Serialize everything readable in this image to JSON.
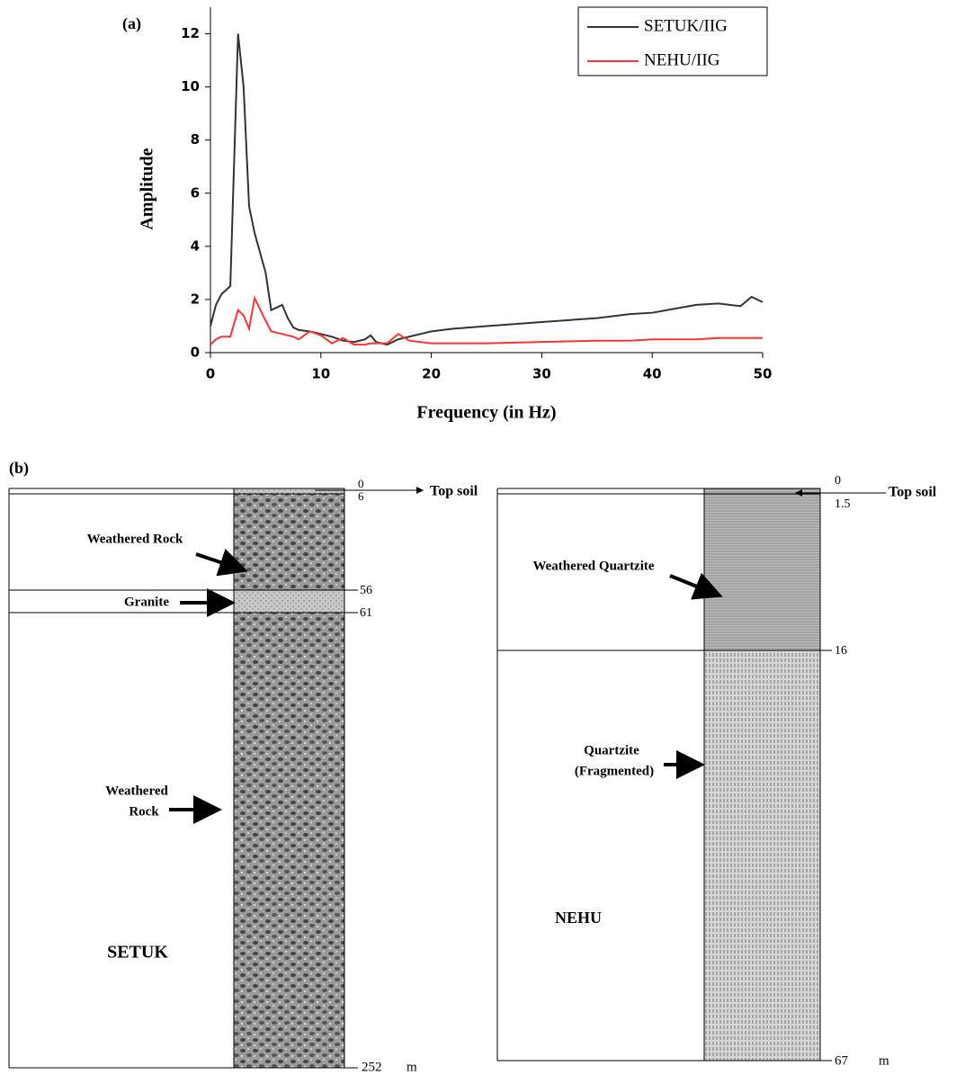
{
  "chart_data": {
    "type": "line",
    "panel_label": "(a)",
    "xlabel": "Frequency (in Hz)",
    "ylabel": "Amplitude",
    "x": [
      0,
      0.5,
      1,
      1.8,
      2.5,
      3,
      3.5,
      4,
      5,
      5.5,
      6.5,
      7,
      7.5,
      8,
      9,
      10,
      11,
      12,
      13,
      14,
      14.5,
      15,
      16,
      17,
      18,
      19,
      20,
      22,
      25,
      30,
      35,
      38,
      40,
      42,
      44,
      46,
      48,
      49,
      50
    ],
    "series": [
      {
        "name": "SETUK/IIG",
        "color": "#333333",
        "values": [
          1.0,
          1.8,
          2.2,
          2.5,
          12,
          10,
          5.5,
          4.5,
          3,
          1.6,
          1.8,
          1.3,
          0.95,
          0.85,
          0.8,
          0.7,
          0.6,
          0.45,
          0.4,
          0.5,
          0.65,
          0.4,
          0.3,
          0.5,
          0.6,
          0.7,
          0.8,
          0.9,
          1.0,
          1.15,
          1.3,
          1.45,
          1.5,
          1.65,
          1.8,
          1.85,
          1.75,
          2.1,
          1.9
        ]
      },
      {
        "name": "NEHU/IIG",
        "color": "#ff3333",
        "values": [
          0.3,
          0.5,
          0.6,
          0.6,
          1.6,
          1.4,
          0.9,
          2.05,
          1.2,
          0.8,
          0.7,
          0.65,
          0.6,
          0.5,
          0.8,
          0.65,
          0.35,
          0.55,
          0.3,
          0.3,
          0.35,
          0.35,
          0.35,
          0.7,
          0.45,
          0.4,
          0.35,
          0.35,
          0.35,
          0.4,
          0.45,
          0.45,
          0.5,
          0.5,
          0.5,
          0.55,
          0.55,
          0.55,
          0.55
        ]
      }
    ],
    "xlim": [
      0,
      50
    ],
    "xticks": [
      0,
      10,
      20,
      30,
      40,
      50
    ],
    "ylim": [
      0,
      13
    ],
    "yticks": [
      0,
      2,
      4,
      6,
      8,
      10,
      12
    ],
    "legend": "upper right"
  },
  "panel_b": {
    "label": "(b)",
    "logs": [
      {
        "station": "SETUK",
        "depths": [
          "0",
          "6",
          "56",
          "61",
          "252"
        ],
        "unit": "m",
        "layers": [
          [
            "Top soil"
          ],
          [
            "Weathered Rock"
          ],
          [
            "Granite"
          ],
          [
            "Weathered",
            "Rock"
          ]
        ]
      },
      {
        "station": "NEHU",
        "depths": [
          "0",
          "1.5",
          "16",
          "67"
        ],
        "unit": "m",
        "layers": [
          [
            "Top soil"
          ],
          [
            "Weathered Quartzite"
          ],
          [
            "Quartzite",
            "(Fragmented)"
          ]
        ]
      }
    ]
  }
}
